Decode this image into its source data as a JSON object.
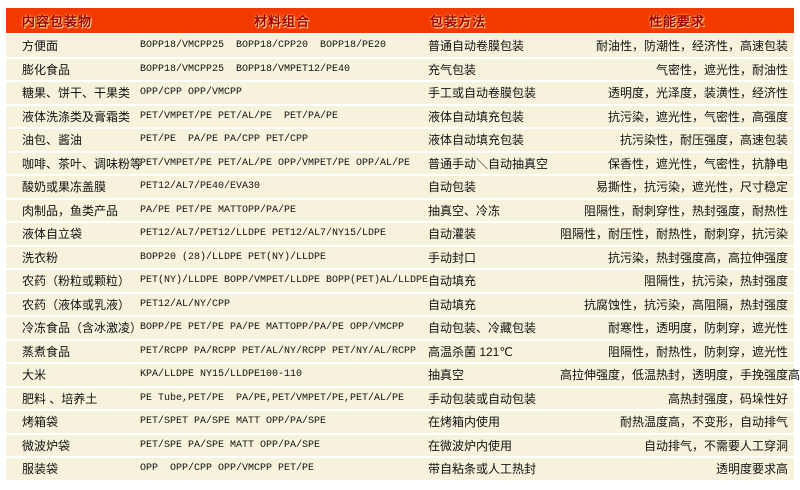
{
  "colors": {
    "header_bg": "#F23A00",
    "header_text": "#A20000",
    "header_glow": "#FFD98F",
    "row_bg": "#F7F2DB",
    "row_text": "#111111",
    "separator": "#FFFFFF"
  },
  "table": {
    "columns": [
      {
        "id": "contents",
        "label": "内容包装物"
      },
      {
        "id": "materials",
        "label": "材料组合"
      },
      {
        "id": "method",
        "label": "包装方法"
      },
      {
        "id": "performance",
        "label": "性能要求"
      }
    ],
    "rows": [
      {
        "contents": "方便面",
        "materials": "BOPP18/VMCPP25  BOPP18/CPP20  BOPP18/PE20",
        "method": "普通自动卷膜包装",
        "performance": "耐油性，防潮性，经济性，高速包装"
      },
      {
        "contents": "膨化食品",
        "materials": "BOPP18/VMCPP25  BOPP18/VMPET12/PE40",
        "method": "充气包装",
        "performance": "气密性，遮光性，耐油性"
      },
      {
        "contents": "糖果、饼干、干果类",
        "materials": "OPP/CPP OPP/VMCPP",
        "method": "手工或自动卷膜包装",
        "performance": "透明度，光泽度，装潢性，经济性"
      },
      {
        "contents": "液体洗涤类及膏霜类",
        "materials": "PET/VMPET/PE PET/AL/PE  PET/PA/PE",
        "method": "液体自动填充包装",
        "performance": "抗污染，遮光性，气密性，高强度"
      },
      {
        "contents": "油包、酱油",
        "materials": "PET/PE  PA/PE PA/CPP PET/CPP",
        "method": "液体自动填充包装",
        "performance": "抗污染性，耐压强度，高速包装"
      },
      {
        "contents": "咖啡、茶叶、调味粉等",
        "materials": "PET/VMPET/PE PET/AL/PE OPP/VMPET/PE OPP/AL/PE",
        "method": "普通手动＼自动抽真空",
        "performance": "保香性，遮光性，气密性，抗静电"
      },
      {
        "contents": "酸奶或果冻盖膜",
        "materials": "PET12/AL7/PE40/EVA30",
        "method": "自动包装",
        "performance": "易撕性，抗污染，遮光性，尺寸稳定"
      },
      {
        "contents": "肉制品，鱼类产品",
        "materials": "PA/PE PET/PE MATTOPP/PA/PE",
        "method": "抽真空、冷冻",
        "performance": "阻隔性，耐刺穿性，热封强度，耐热性"
      },
      {
        "contents": "液体自立袋",
        "materials": "PET12/AL7/PET12/LLDPE PET12/AL7/NY15/LDPE",
        "method": "自动灌装",
        "performance": "阻隔性，耐压性，耐热性，耐刺穿，抗污染"
      },
      {
        "contents": "洗衣粉",
        "materials": "BOPP20 (28)/LLDPE PET(NY)/LLDPE",
        "method": "手动封口",
        "performance": "抗污染，热封强度高，高拉伸强度"
      },
      {
        "contents": "农药（粉粒或颗粒）",
        "materials": "PET(NY)/LLDPE BOPP/VMPET/LLDPE BOPP(PET)AL/LLDPE",
        "method": "自动填充",
        "performance": "阻隔性，抗污染，热封强度"
      },
      {
        "contents": "农药（液体或乳液）",
        "materials": "PET12/AL/NY/CPP",
        "method": "自动填充",
        "performance": "抗腐蚀性，抗污染，高阻隔，热封强度"
      },
      {
        "contents": "冷冻食品（含冰激凌）",
        "materials": "BOPP/PE PET/PE PA/PE MATTOPP/PA/PE OPP/VMCPP",
        "method": "自动包装、冷藏包装",
        "performance": "耐寒性，透明度，防刺穿，遮光性"
      },
      {
        "contents": "蒸煮食品",
        "materials": "PET/RCPP PA/RCPP PET/AL/NY/RCPP PET/NY/AL/RCPP",
        "method": "高温杀菌 121℃",
        "performance": "阻隔性，耐热性，防刺穿，遮光性"
      },
      {
        "contents": "大米",
        "materials": "KPA/LLDPE NY15/LLDPE100-110",
        "method": "抽真空",
        "performance": "高拉伸强度，低温热封，透明度，手挽强度高"
      },
      {
        "contents": "肥料 、培养土",
        "materials": "PE Tube,PET/PE  PA/PE,PET/VMPET/PE,PET/AL/PE",
        "method": "手动包装或自动包装",
        "performance": "高热封强度，码垛性好"
      },
      {
        "contents": "烤箱袋",
        "materials": "PET/SPET PA/SPE MATT OPP/PA/SPE",
        "method": "在烤箱内使用",
        "performance": "耐热温度高，不变形，自动排气"
      },
      {
        "contents": "微波炉袋",
        "materials": "PET/SPE PA/SPE MATT OPP/PA/SPE",
        "method": "在微波炉内使用",
        "performance": "自动排气，不需要人工穿洞"
      },
      {
        "contents": "服装袋",
        "materials": "OPP  OPP/CPP OPP/VMCPP PET/PE",
        "method": "带自粘条或人工热封",
        "performance": "透明度要求高"
      }
    ]
  }
}
